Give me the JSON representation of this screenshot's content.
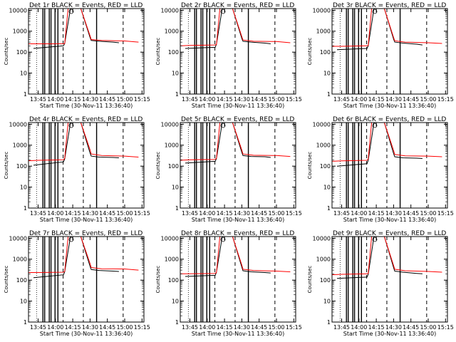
{
  "panel_title_suffix": "BLACK = Events, RED = LLD",
  "ylabel": "Counts/sec",
  "xlabel": "Start Time (30-Nov-11 13:36:40)",
  "x_ticks": [
    "13:45",
    "14:00",
    "14:15",
    "14:30",
    "14:45",
    "15:00",
    "15:15"
  ],
  "y_ticks": [
    "1",
    "10",
    "100",
    "1000",
    "10000"
  ],
  "colors": {
    "events": "#000000",
    "lld": "#ff0000",
    "axis": "#000000"
  },
  "chart_data": [
    {
      "type": "line",
      "title": "Det 1r",
      "xlabel": "Start Time (30-Nov-11 13:36:40)",
      "ylabel": "Counts/sec",
      "xlim": [
        "13:36:40",
        "15:16:40"
      ],
      "ylim": [
        1,
        12000
      ],
      "yscale": "log",
      "grid": false,
      "series": [
        {
          "name": "BLACK = Events",
          "x": [
            "13:41",
            "14:07",
            "14:08",
            "14:13",
            "14:17",
            "14:22",
            "14:30",
            "14:31",
            "14:38",
            "14:50",
            "14:55"
          ],
          "y": [
            150,
            200,
            260,
            12000,
            12000,
            12000,
            500,
            360,
            330,
            300,
            280
          ]
        },
        {
          "name": "RED = LLD",
          "x": [
            "13:36",
            "13:45",
            "14:07",
            "14:08",
            "14:11",
            "14:22",
            "14:30",
            "14:31",
            "14:40",
            "15:00",
            "15:12"
          ],
          "y": [
            250,
            250,
            250,
            260,
            12000,
            12000,
            600,
            400,
            360,
            340,
            300
          ]
        }
      ]
    },
    {
      "type": "line",
      "title": "Det 2r",
      "xlabel": "Start Time (30-Nov-11 13:36:40)",
      "ylabel": "Counts/sec",
      "xlim": [
        "13:36:40",
        "15:16:40"
      ],
      "ylim": [
        1,
        12000
      ],
      "yscale": "log",
      "grid": false,
      "series": [
        {
          "name": "BLACK = Events",
          "x": [
            "13:41",
            "14:07",
            "14:08",
            "14:13",
            "14:17",
            "14:22",
            "14:30",
            "14:31",
            "14:38",
            "14:50",
            "14:55"
          ],
          "y": [
            150,
            170,
            240,
            12000,
            12000,
            12000,
            450,
            330,
            300,
            270,
            250
          ]
        },
        {
          "name": "RED = LLD",
          "x": [
            "13:36",
            "13:45",
            "14:07",
            "14:08",
            "14:11",
            "14:22",
            "14:30",
            "14:31",
            "14:40",
            "15:00",
            "15:12"
          ],
          "y": [
            200,
            210,
            220,
            230,
            12000,
            12000,
            550,
            380,
            330,
            320,
            280
          ]
        }
      ]
    },
    {
      "type": "line",
      "title": "Det 3r",
      "xlabel": "Start Time (30-Nov-11 13:36:40)",
      "ylabel": "Counts/sec",
      "xlim": [
        "13:36:40",
        "15:16:40"
      ],
      "ylim": [
        1,
        12000
      ],
      "yscale": "log",
      "grid": false,
      "series": [
        {
          "name": "BLACK = Events",
          "x": [
            "13:41",
            "14:07",
            "14:08",
            "14:13",
            "14:17",
            "14:22",
            "14:30",
            "14:31",
            "14:38",
            "14:50",
            "14:55"
          ],
          "y": [
            130,
            150,
            200,
            12000,
            12000,
            12000,
            420,
            300,
            270,
            240,
            220
          ]
        },
        {
          "name": "RED = LLD",
          "x": [
            "13:36",
            "13:45",
            "14:07",
            "14:08",
            "14:11",
            "14:22",
            "14:30",
            "14:31",
            "14:40",
            "15:00",
            "15:12"
          ],
          "y": [
            190,
            190,
            200,
            210,
            12000,
            12000,
            500,
            350,
            300,
            280,
            260
          ]
        }
      ]
    },
    {
      "type": "line",
      "title": "Det 4r",
      "xlabel": "Start Time (30-Nov-11 13:36:40)",
      "ylabel": "Counts/sec",
      "xlim": [
        "13:36:40",
        "15:16:40"
      ],
      "ylim": [
        1,
        12000
      ],
      "yscale": "log",
      "grid": false,
      "series": [
        {
          "name": "BLACK = Events",
          "x": [
            "13:41",
            "14:07",
            "14:08",
            "14:13",
            "14:17",
            "14:22",
            "14:30",
            "14:31",
            "14:38",
            "14:50",
            "14:55"
          ],
          "y": [
            110,
            160,
            220,
            12000,
            12000,
            12000,
            420,
            300,
            270,
            260,
            250
          ]
        },
        {
          "name": "RED = LLD",
          "x": [
            "13:36",
            "13:45",
            "14:07",
            "14:08",
            "14:11",
            "14:22",
            "14:30",
            "14:31",
            "14:40",
            "15:00",
            "15:12"
          ],
          "y": [
            180,
            190,
            200,
            240,
            12000,
            12000,
            600,
            380,
            320,
            300,
            270
          ]
        }
      ]
    },
    {
      "type": "line",
      "title": "Det 5r",
      "xlabel": "Start Time (30-Nov-11 13:36:40)",
      "ylabel": "Counts/sec",
      "xlim": [
        "13:36:40",
        "15:16:40"
      ],
      "ylim": [
        1,
        12000
      ],
      "yscale": "log",
      "grid": false,
      "series": [
        {
          "name": "BLACK = Events",
          "x": [
            "13:41",
            "14:07",
            "14:08",
            "14:13",
            "14:17",
            "14:22",
            "14:30",
            "14:31",
            "14:38",
            "14:50",
            "14:55"
          ],
          "y": [
            140,
            170,
            230,
            12000,
            12000,
            12000,
            450,
            320,
            290,
            280,
            260
          ]
        },
        {
          "name": "RED = LLD",
          "x": [
            "13:36",
            "13:45",
            "14:07",
            "14:08",
            "14:11",
            "14:22",
            "14:30",
            "14:31",
            "14:40",
            "15:00",
            "15:12"
          ],
          "y": [
            190,
            200,
            210,
            240,
            12000,
            12000,
            580,
            380,
            330,
            320,
            290
          ]
        }
      ]
    },
    {
      "type": "line",
      "title": "Det 6r",
      "xlabel": "Start Time (30-Nov-11 13:36:40)",
      "ylabel": "Counts/sec",
      "xlim": [
        "13:36:40",
        "15:16:40"
      ],
      "ylim": [
        1,
        12000
      ],
      "yscale": "log",
      "grid": false,
      "series": [
        {
          "name": "BLACK = Events",
          "x": [
            "13:41",
            "14:07",
            "14:08",
            "14:13",
            "14:17",
            "14:22",
            "14:30",
            "14:31",
            "14:38",
            "14:50",
            "14:55"
          ],
          "y": [
            100,
            130,
            190,
            12000,
            12000,
            12000,
            400,
            280,
            250,
            240,
            230
          ]
        },
        {
          "name": "RED = LLD",
          "x": [
            "13:36",
            "13:45",
            "14:07",
            "14:08",
            "14:11",
            "14:22",
            "14:30",
            "14:31",
            "14:40",
            "15:00",
            "15:12"
          ],
          "y": [
            170,
            180,
            190,
            220,
            12000,
            12000,
            560,
            360,
            310,
            300,
            280
          ]
        }
      ]
    },
    {
      "type": "line",
      "title": "Det 7r",
      "xlabel": "Start Time (30-Nov-11 13:36:40)",
      "ylabel": "Counts/sec",
      "xlim": [
        "13:36:40",
        "15:16:40"
      ],
      "ylim": [
        1,
        12000
      ],
      "yscale": "log",
      "grid": false,
      "series": [
        {
          "name": "BLACK = Events",
          "x": [
            "13:41",
            "14:07",
            "14:08",
            "14:13",
            "14:17",
            "14:22",
            "14:30",
            "14:31",
            "14:38",
            "14:50",
            "14:55"
          ],
          "y": [
            130,
            180,
            250,
            12000,
            12000,
            12000,
            450,
            320,
            290,
            270,
            260
          ]
        },
        {
          "name": "RED = LLD",
          "x": [
            "13:36",
            "13:45",
            "14:07",
            "14:08",
            "14:11",
            "14:22",
            "14:30",
            "14:31",
            "14:40",
            "15:00",
            "15:12"
          ],
          "y": [
            230,
            230,
            240,
            260,
            12000,
            12000,
            620,
            400,
            350,
            340,
            300
          ]
        }
      ]
    },
    {
      "type": "line",
      "title": "Det 8r",
      "xlabel": "Start Time (30-Nov-11 13:36:40)",
      "ylabel": "Counts/sec",
      "xlim": [
        "13:36:40",
        "15:16:40"
      ],
      "ylim": [
        1,
        12000
      ],
      "yscale": "log",
      "grid": false,
      "series": [
        {
          "name": "BLACK = Events",
          "x": [
            "13:41",
            "14:07",
            "14:08",
            "14:13",
            "14:17",
            "14:22",
            "14:30",
            "14:31",
            "14:38",
            "14:50",
            "14:55"
          ],
          "y": [
            150,
            170,
            240,
            12000,
            12000,
            12000,
            420,
            280,
            250,
            230,
            220
          ]
        },
        {
          "name": "RED = LLD",
          "x": [
            "13:36",
            "13:45",
            "14:07",
            "14:08",
            "14:11",
            "14:22",
            "14:30",
            "14:31",
            "14:40",
            "15:00",
            "15:12"
          ],
          "y": [
            200,
            200,
            210,
            230,
            12000,
            12000,
            520,
            330,
            290,
            270,
            250
          ]
        }
      ]
    },
    {
      "type": "line",
      "title": "Det 9r",
      "xlabel": "Start Time (30-Nov-11 13:36:40)",
      "ylabel": "Counts/sec",
      "xlim": [
        "13:36:40",
        "15:16:40"
      ],
      "ylim": [
        1,
        12000
      ],
      "yscale": "log",
      "grid": false,
      "series": [
        {
          "name": "BLACK = Events",
          "x": [
            "13:41",
            "14:07",
            "14:08",
            "14:13",
            "14:17",
            "14:22",
            "14:30",
            "14:31",
            "14:38",
            "14:50",
            "14:55"
          ],
          "y": [
            120,
            140,
            190,
            12000,
            12000,
            12000,
            400,
            270,
            240,
            210,
            200
          ]
        },
        {
          "name": "RED = LLD",
          "x": [
            "13:36",
            "13:45",
            "14:07",
            "14:08",
            "14:11",
            "14:22",
            "14:30",
            "14:31",
            "14:40",
            "15:00",
            "15:12"
          ],
          "y": [
            180,
            190,
            200,
            210,
            12000,
            12000,
            500,
            330,
            280,
            260,
            240
          ]
        }
      ]
    }
  ]
}
